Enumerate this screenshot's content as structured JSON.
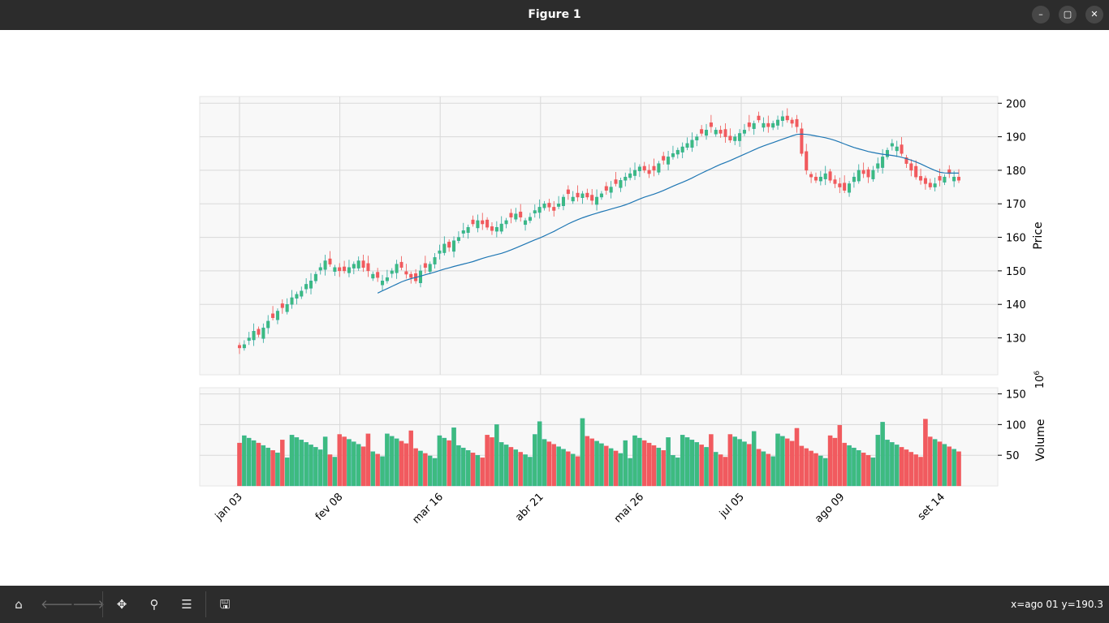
{
  "window": {
    "title": "Figure 1",
    "buttons": {
      "minimize": "–",
      "maximize": "▢",
      "close": "✕"
    }
  },
  "toolbar": {
    "buttons": [
      {
        "name": "home-button",
        "icon": "home-icon",
        "glyph": "⌂",
        "enabled": true
      },
      {
        "name": "back-button",
        "icon": "arrow-left-icon",
        "glyph": "🡐",
        "enabled": false
      },
      {
        "name": "forward-button",
        "icon": "arrow-right-icon",
        "glyph": "🡒",
        "enabled": false
      },
      {
        "name": "pan-button",
        "icon": "move-icon",
        "glyph": "✥",
        "enabled": true
      },
      {
        "name": "zoom-button",
        "icon": "magnifier-icon",
        "glyph": "⚲",
        "enabled": true
      },
      {
        "name": "configure-subplots-button",
        "icon": "sliders-icon",
        "glyph": "☰",
        "enabled": true
      },
      {
        "name": "save-button",
        "icon": "floppy-icon",
        "glyph": "🖫",
        "enabled": true
      }
    ],
    "coords": "x=ago 01 y=190.3"
  },
  "chart_data": {
    "type": "candlestick",
    "x_ticks": [
      "jan 03",
      "fev 08",
      "mar 16",
      "abr 21",
      "mai 26",
      "jul 05",
      "ago 09",
      "set 14"
    ],
    "price_axis": {
      "label": "Price",
      "ylim": [
        119,
        202
      ],
      "ticks": [
        130,
        140,
        150,
        160,
        170,
        180,
        190,
        200
      ]
    },
    "volume_axis": {
      "label": "Volume",
      "exponent": "6",
      "ylim": [
        0,
        160
      ],
      "ticks": [
        50,
        100,
        150
      ]
    },
    "grid": true,
    "colors": {
      "up": "#26a69a",
      "up_fill": "#3dbb80",
      "down": "#ef5350",
      "down_fill": "#f15a5f",
      "ma": "#1f77b4",
      "panel": "#f8f8f8",
      "grid": "#d9d9d9"
    },
    "close": [
      127,
      128,
      130,
      132,
      131,
      133,
      135,
      136,
      138,
      139,
      140,
      142,
      143,
      144,
      146,
      147,
      149,
      151,
      153,
      152,
      151,
      150,
      150,
      151,
      152,
      153,
      151,
      150,
      149,
      148,
      147,
      148,
      150,
      152,
      151,
      149,
      148,
      147,
      150,
      151,
      152,
      154,
      156,
      158,
      157,
      159,
      160,
      162,
      163,
      164,
      165,
      164,
      163,
      162,
      163,
      164,
      165,
      166,
      167,
      166,
      165,
      166,
      168,
      169,
      170,
      169,
      168,
      170,
      172,
      173,
      172,
      172,
      173,
      172,
      171,
      172,
      173,
      174,
      175,
      176,
      177,
      178,
      179,
      180,
      181,
      180,
      179,
      180,
      182,
      183,
      184,
      185,
      186,
      187,
      188,
      189,
      190,
      191,
      192,
      193,
      192,
      191,
      190,
      189,
      190,
      191,
      192,
      193,
      194,
      195,
      194,
      193,
      194,
      195,
      196,
      195,
      194,
      193,
      185,
      180,
      178,
      177,
      178,
      179,
      177,
      176,
      175,
      174,
      176,
      178,
      180,
      179,
      178,
      180,
      182,
      184,
      186,
      188,
      187,
      185,
      182,
      180,
      178,
      177,
      176,
      175,
      176,
      177,
      178,
      179,
      178,
      177
    ]
  }
}
